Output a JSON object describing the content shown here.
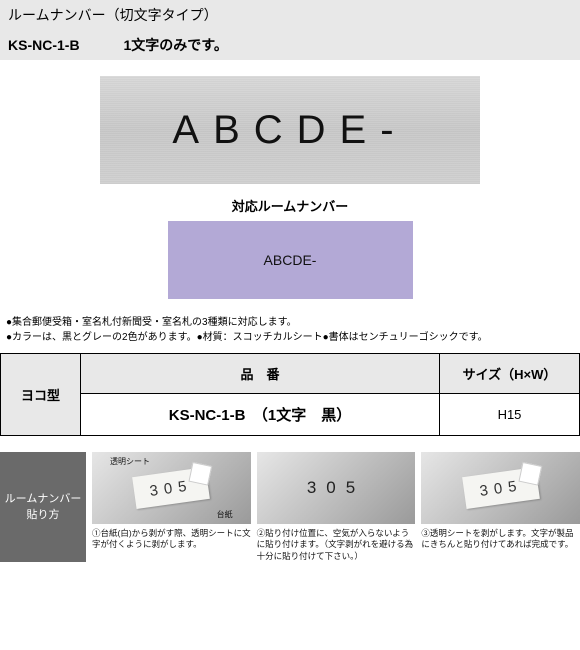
{
  "header": {
    "title": "ルームナンバー（切文字タイプ）",
    "product_code": "KS-NC-1-B",
    "subtitle_note": "1文字のみです。"
  },
  "plate_text": "ABCDE-",
  "response_label": "対応ルームナンバー",
  "lavender_text": "ABCDE-",
  "notes": {
    "line1": "●集合郵便受箱・室名札付新聞受・室名札の3種類に対応します。",
    "line2": "●カラーは、黒とグレーの2色があります。●材質：スコッチカルシート●書体はセンチュリーゴシックです。"
  },
  "table": {
    "head_item": "品　番",
    "head_size": "サイズ（H×W）",
    "type": "ヨコ型",
    "item_no": "KS-NC-1-B　（1文字　黒）",
    "size": "H15"
  },
  "instructions": {
    "label_l1": "ルームナンバー",
    "label_l2": "貼り方",
    "num": "305",
    "callout_top": "透明シート",
    "callout_bot": "台紙",
    "cap1": "①台紙(白)から剥がす際、透明シートに文字が付くように剥がします。",
    "cap2": "②貼り付け位置に、空気が入らないように貼り付けます。（文字剥がれを避ける為十分に貼り付けて下さい。）",
    "cap3": "③透明シートを剥がします。文字が製品にきちんと貼り付けてあれば完成です。"
  },
  "colors": {
    "header_bg": "#e8e8e8",
    "lavender": "#b3a9d6",
    "instr_label_bg": "#6a6a6a"
  }
}
